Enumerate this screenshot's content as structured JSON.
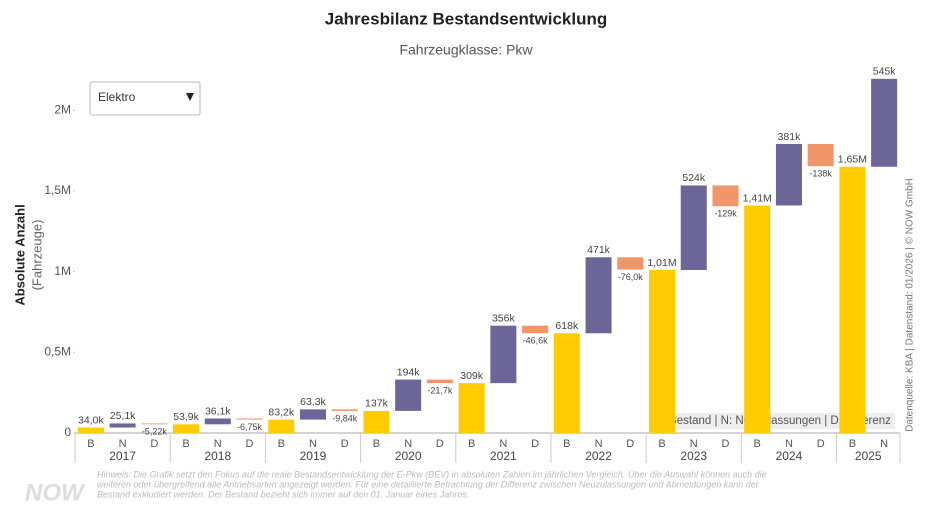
{
  "title": "Jahresbilanz Bestandsentwicklung",
  "subtitle": "Fahrzeugklasse: Pkw",
  "dropdown": "Elektro",
  "source": "Datenquelle: KBA | Datenstand: 01/2026 | © NOW GmbH",
  "footnote": [
    "Hinweis: Die Grafik setzt den Fokus auf die reale Bestandsentwicklung der E-Pkw (BEV) in absoluten Zahlen im jährlichen Vergleich. Über die Auswahl können auch die",
    "weiteren oder übergreifend alle Antriebsarten angezeigt werden. Für eine detaillierte Betrachtung der Differenz zwischen Neuzulassungen und Abmeldungen kann der",
    "Bestand exkludiert werden. Der Bestand bezieht sich immer auf den 01. Januar eines Jahres."
  ],
  "logo": "NOW",
  "chart_data": {
    "type": "waterfall",
    "y_label": "Absolute Anzahl",
    "y_sublabel": "(Fahrzeuge)",
    "legend": "B: Bestand | N: Neuzulassungen | D: Differenz",
    "colors": {
      "B": "#ffcc00",
      "N": "#6b6598",
      "D": "#f0966a"
    },
    "ylim": [
      0,
      2200000
    ],
    "yticks": [
      0,
      {
        "value": 500000,
        "label": "0,5M"
      },
      {
        "value": 1000000,
        "label": "1M"
      },
      {
        "value": 1500000,
        "label": "1,5M"
      },
      {
        "value": 2000000,
        "label": "2M"
      }
    ],
    "groups": [
      {
        "name": "2017",
        "categories": [
          "B",
          "N",
          "D"
        ],
        "values": [
          34000,
          25100,
          -5220
        ],
        "value_labels": [
          "34,0k",
          "25,1k",
          "-5,22k"
        ]
      },
      {
        "name": "2018",
        "categories": [
          "B",
          "N",
          "D"
        ],
        "values": [
          53900,
          36100,
          -6750
        ],
        "value_labels": [
          "53,9k",
          "36,1k",
          "-6,75k"
        ]
      },
      {
        "name": "2019",
        "categories": [
          "B",
          "N",
          "D"
        ],
        "values": [
          83200,
          63300,
          -9840
        ],
        "value_labels": [
          "83,2k",
          "63,3k",
          "-9,84k"
        ]
      },
      {
        "name": "2020",
        "categories": [
          "B",
          "N",
          "D"
        ],
        "values": [
          137000,
          194000,
          -21700
        ],
        "value_labels": [
          "137k",
          "194k",
          "-21,7k"
        ]
      },
      {
        "name": "2021",
        "categories": [
          "B",
          "N",
          "D"
        ],
        "values": [
          309000,
          356000,
          -46600
        ],
        "value_labels": [
          "309k",
          "356k",
          "-46,6k"
        ]
      },
      {
        "name": "2022",
        "categories": [
          "B",
          "N",
          "D"
        ],
        "values": [
          618000,
          471000,
          -76000
        ],
        "value_labels": [
          "618k",
          "471k",
          "-76,0k"
        ]
      },
      {
        "name": "2023",
        "categories": [
          "B",
          "N",
          "D"
        ],
        "values": [
          1010000,
          524000,
          -129000
        ],
        "value_labels": [
          "1,01M",
          "524k",
          "-129k"
        ]
      },
      {
        "name": "2024",
        "categories": [
          "B",
          "N",
          "D"
        ],
        "values": [
          1410000,
          381000,
          -138000
        ],
        "value_labels": [
          "1,41M",
          "381k",
          "-138k"
        ]
      },
      {
        "name": "2025",
        "categories": [
          "B",
          "N"
        ],
        "values": [
          1650000,
          545000
        ],
        "value_labels": [
          "1,65M",
          "545k"
        ]
      }
    ]
  }
}
